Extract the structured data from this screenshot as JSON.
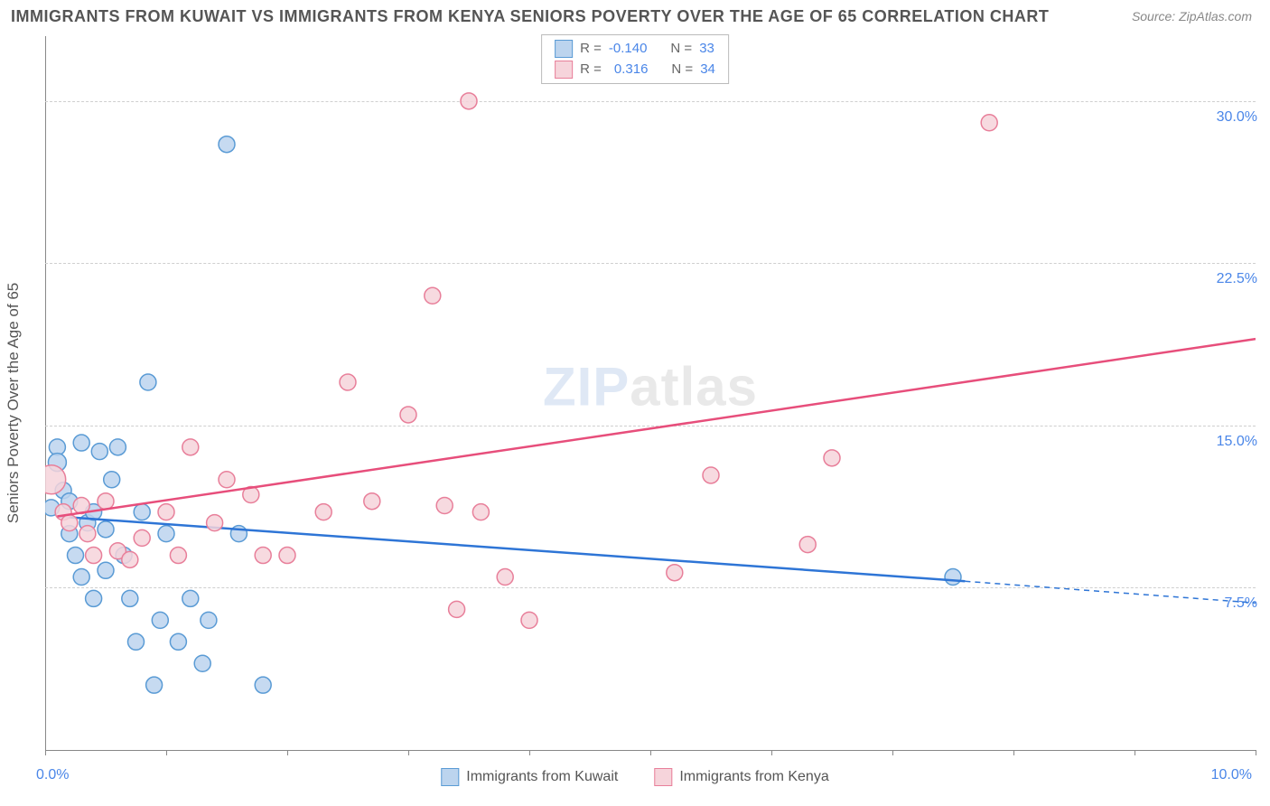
{
  "title": "IMMIGRANTS FROM KUWAIT VS IMMIGRANTS FROM KENYA SENIORS POVERTY OVER THE AGE OF 65 CORRELATION CHART",
  "source": "Source: ZipAtlas.com",
  "watermark_zip": "ZIP",
  "watermark_atlas": "atlas",
  "y_axis_title": "Seniors Poverty Over the Age of 65",
  "chart": {
    "type": "scatter",
    "background_color": "#ffffff",
    "grid_color": "#cfcfcf",
    "xlim": [
      0,
      10
    ],
    "ylim": [
      0,
      33
    ],
    "x_ticks": [
      0,
      1,
      2,
      3,
      4,
      5,
      6,
      7,
      8,
      9,
      10
    ],
    "x_tick_labels_show": [
      0,
      10
    ],
    "x_tick_labels": {
      "0": "0.0%",
      "10": "10.0%"
    },
    "y_gridlines": [
      7.5,
      15.0,
      22.5,
      30.0
    ],
    "y_tick_labels": [
      "7.5%",
      "15.0%",
      "22.5%",
      "30.0%"
    ],
    "series": [
      {
        "name": "Immigrants from Kuwait",
        "marker_color_fill": "#bcd4ee",
        "marker_color_stroke": "#5a9bd5",
        "line_color": "#2e75d6",
        "R": "-0.140",
        "N": "33",
        "trend": {
          "x1": 0.1,
          "y1": 10.8,
          "x2": 7.6,
          "y2": 7.8,
          "x_dash_to": 10.0,
          "y_dash_to": 6.8
        },
        "points": [
          {
            "x": 0.05,
            "y": 11.2,
            "r": 9
          },
          {
            "x": 0.1,
            "y": 14.0,
            "r": 9
          },
          {
            "x": 0.1,
            "y": 13.3,
            "r": 10
          },
          {
            "x": 0.15,
            "y": 12.0,
            "r": 9
          },
          {
            "x": 0.2,
            "y": 10.0,
            "r": 9
          },
          {
            "x": 0.2,
            "y": 11.5,
            "r": 9
          },
          {
            "x": 0.25,
            "y": 9.0,
            "r": 9
          },
          {
            "x": 0.3,
            "y": 8.0,
            "r": 9
          },
          {
            "x": 0.3,
            "y": 14.2,
            "r": 9
          },
          {
            "x": 0.35,
            "y": 10.5,
            "r": 9
          },
          {
            "x": 0.4,
            "y": 7.0,
            "r": 9
          },
          {
            "x": 0.4,
            "y": 11.0,
            "r": 9
          },
          {
            "x": 0.45,
            "y": 13.8,
            "r": 9
          },
          {
            "x": 0.5,
            "y": 10.2,
            "r": 9
          },
          {
            "x": 0.5,
            "y": 8.3,
            "r": 9
          },
          {
            "x": 0.55,
            "y": 12.5,
            "r": 9
          },
          {
            "x": 0.6,
            "y": 14.0,
            "r": 9
          },
          {
            "x": 0.65,
            "y": 9.0,
            "r": 9
          },
          {
            "x": 0.7,
            "y": 7.0,
            "r": 9
          },
          {
            "x": 0.75,
            "y": 5.0,
            "r": 9
          },
          {
            "x": 0.8,
            "y": 11.0,
            "r": 9
          },
          {
            "x": 0.85,
            "y": 17.0,
            "r": 9
          },
          {
            "x": 0.9,
            "y": 3.0,
            "r": 9
          },
          {
            "x": 0.95,
            "y": 6.0,
            "r": 9
          },
          {
            "x": 1.0,
            "y": 10.0,
            "r": 9
          },
          {
            "x": 1.1,
            "y": 5.0,
            "r": 9
          },
          {
            "x": 1.2,
            "y": 7.0,
            "r": 9
          },
          {
            "x": 1.3,
            "y": 4.0,
            "r": 9
          },
          {
            "x": 1.35,
            "y": 6.0,
            "r": 9
          },
          {
            "x": 1.5,
            "y": 28.0,
            "r": 9
          },
          {
            "x": 1.6,
            "y": 10.0,
            "r": 9
          },
          {
            "x": 1.8,
            "y": 3.0,
            "r": 9
          },
          {
            "x": 7.5,
            "y": 8.0,
            "r": 9
          }
        ]
      },
      {
        "name": "Immigrants from Kenya",
        "marker_color_fill": "#f6d4db",
        "marker_color_stroke": "#e87f9a",
        "line_color": "#e74e7b",
        "R": "0.316",
        "N": "34",
        "trend": {
          "x1": 0.1,
          "y1": 10.8,
          "x2": 10.0,
          "y2": 19.0
        },
        "points": [
          {
            "x": 0.05,
            "y": 12.5,
            "r": 16
          },
          {
            "x": 0.15,
            "y": 11.0,
            "r": 9
          },
          {
            "x": 0.2,
            "y": 10.5,
            "r": 9
          },
          {
            "x": 0.3,
            "y": 11.3,
            "r": 9
          },
          {
            "x": 0.35,
            "y": 10.0,
            "r": 9
          },
          {
            "x": 0.4,
            "y": 9.0,
            "r": 9
          },
          {
            "x": 0.5,
            "y": 11.5,
            "r": 9
          },
          {
            "x": 0.6,
            "y": 9.2,
            "r": 9
          },
          {
            "x": 0.7,
            "y": 8.8,
            "r": 9
          },
          {
            "x": 0.8,
            "y": 9.8,
            "r": 9
          },
          {
            "x": 1.0,
            "y": 11.0,
            "r": 9
          },
          {
            "x": 1.1,
            "y": 9.0,
            "r": 9
          },
          {
            "x": 1.2,
            "y": 14.0,
            "r": 9
          },
          {
            "x": 1.4,
            "y": 10.5,
            "r": 9
          },
          {
            "x": 1.5,
            "y": 12.5,
            "r": 9
          },
          {
            "x": 1.7,
            "y": 11.8,
            "r": 9
          },
          {
            "x": 1.8,
            "y": 9.0,
            "r": 9
          },
          {
            "x": 2.0,
            "y": 9.0,
            "r": 9
          },
          {
            "x": 2.3,
            "y": 11.0,
            "r": 9
          },
          {
            "x": 2.5,
            "y": 17.0,
            "r": 9
          },
          {
            "x": 2.7,
            "y": 11.5,
            "r": 9
          },
          {
            "x": 3.0,
            "y": 15.5,
            "r": 9
          },
          {
            "x": 3.2,
            "y": 21.0,
            "r": 9
          },
          {
            "x": 3.3,
            "y": 11.3,
            "r": 9
          },
          {
            "x": 3.4,
            "y": 6.5,
            "r": 9
          },
          {
            "x": 3.5,
            "y": 30.0,
            "r": 9
          },
          {
            "x": 3.6,
            "y": 11.0,
            "r": 9
          },
          {
            "x": 3.8,
            "y": 8.0,
            "r": 9
          },
          {
            "x": 4.0,
            "y": 6.0,
            "r": 9
          },
          {
            "x": 5.2,
            "y": 8.2,
            "r": 9
          },
          {
            "x": 5.5,
            "y": 12.7,
            "r": 9
          },
          {
            "x": 6.3,
            "y": 9.5,
            "r": 9
          },
          {
            "x": 6.5,
            "y": 13.5,
            "r": 9
          },
          {
            "x": 7.8,
            "y": 29.0,
            "r": 9
          }
        ]
      }
    ]
  },
  "legend_top_labels": {
    "R": "R =",
    "N": "N ="
  },
  "legend_bottom": [
    "Immigrants from Kuwait",
    "Immigrants from Kenya"
  ]
}
